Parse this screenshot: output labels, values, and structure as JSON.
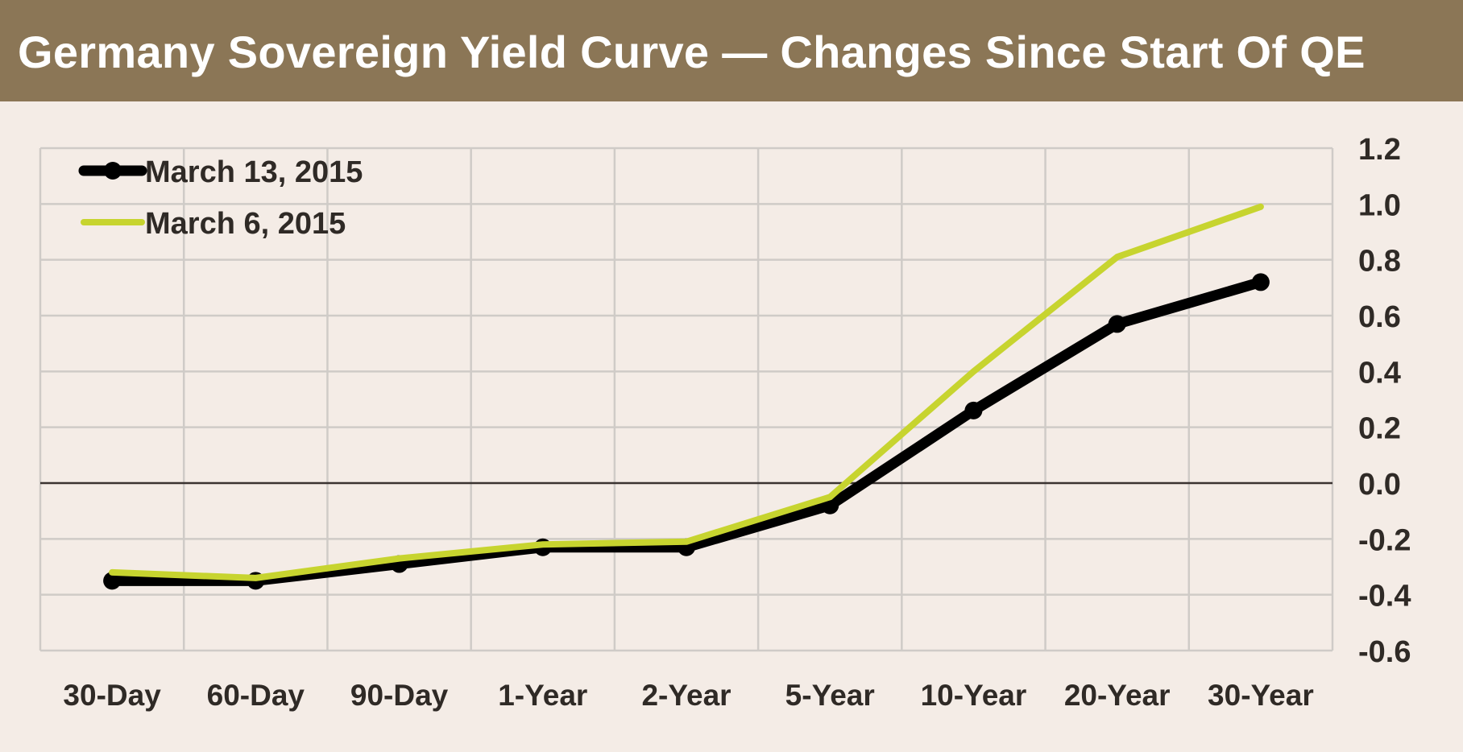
{
  "page_title": "Germany Sovereign Yield Curve — Changes Since Start Of QE",
  "colors": {
    "header_bg": "#8b7656",
    "background": "#f4ece6",
    "grid": "#cfcbc7",
    "zero_line": "#3a3330",
    "series_march13": "#000000",
    "series_march6": "#c7d42f"
  },
  "chart_data": {
    "type": "line",
    "title": "Germany Sovereign Yield Curve — Changes Since Start Of QE",
    "categories": [
      "30-Day",
      "60-Day",
      "90-Day",
      "1-Year",
      "2-Year",
      "5-Year",
      "10-Year",
      "20-Year",
      "30-Year"
    ],
    "series": [
      {
        "name": "March 13, 2015",
        "color": "#000000",
        "markers": true,
        "values": [
          -0.35,
          -0.35,
          -0.29,
          -0.23,
          -0.23,
          -0.08,
          0.26,
          0.57,
          0.72
        ]
      },
      {
        "name": "March 6, 2015",
        "color": "#c7d42f",
        "markers": false,
        "values": [
          -0.32,
          -0.34,
          -0.27,
          -0.22,
          -0.21,
          -0.05,
          0.4,
          0.81,
          0.99
        ]
      }
    ],
    "ylim": [
      -0.6,
      1.2
    ],
    "yticks": [
      "1.2",
      "1.0",
      "0.8",
      "0.6",
      "0.4",
      "0.2",
      "0.0",
      "-0.2",
      "-0.4",
      "-0.6"
    ],
    "y_axis_side": "right",
    "xlabel": "",
    "ylabel": "",
    "grid": true,
    "legend_position": "top-left"
  }
}
